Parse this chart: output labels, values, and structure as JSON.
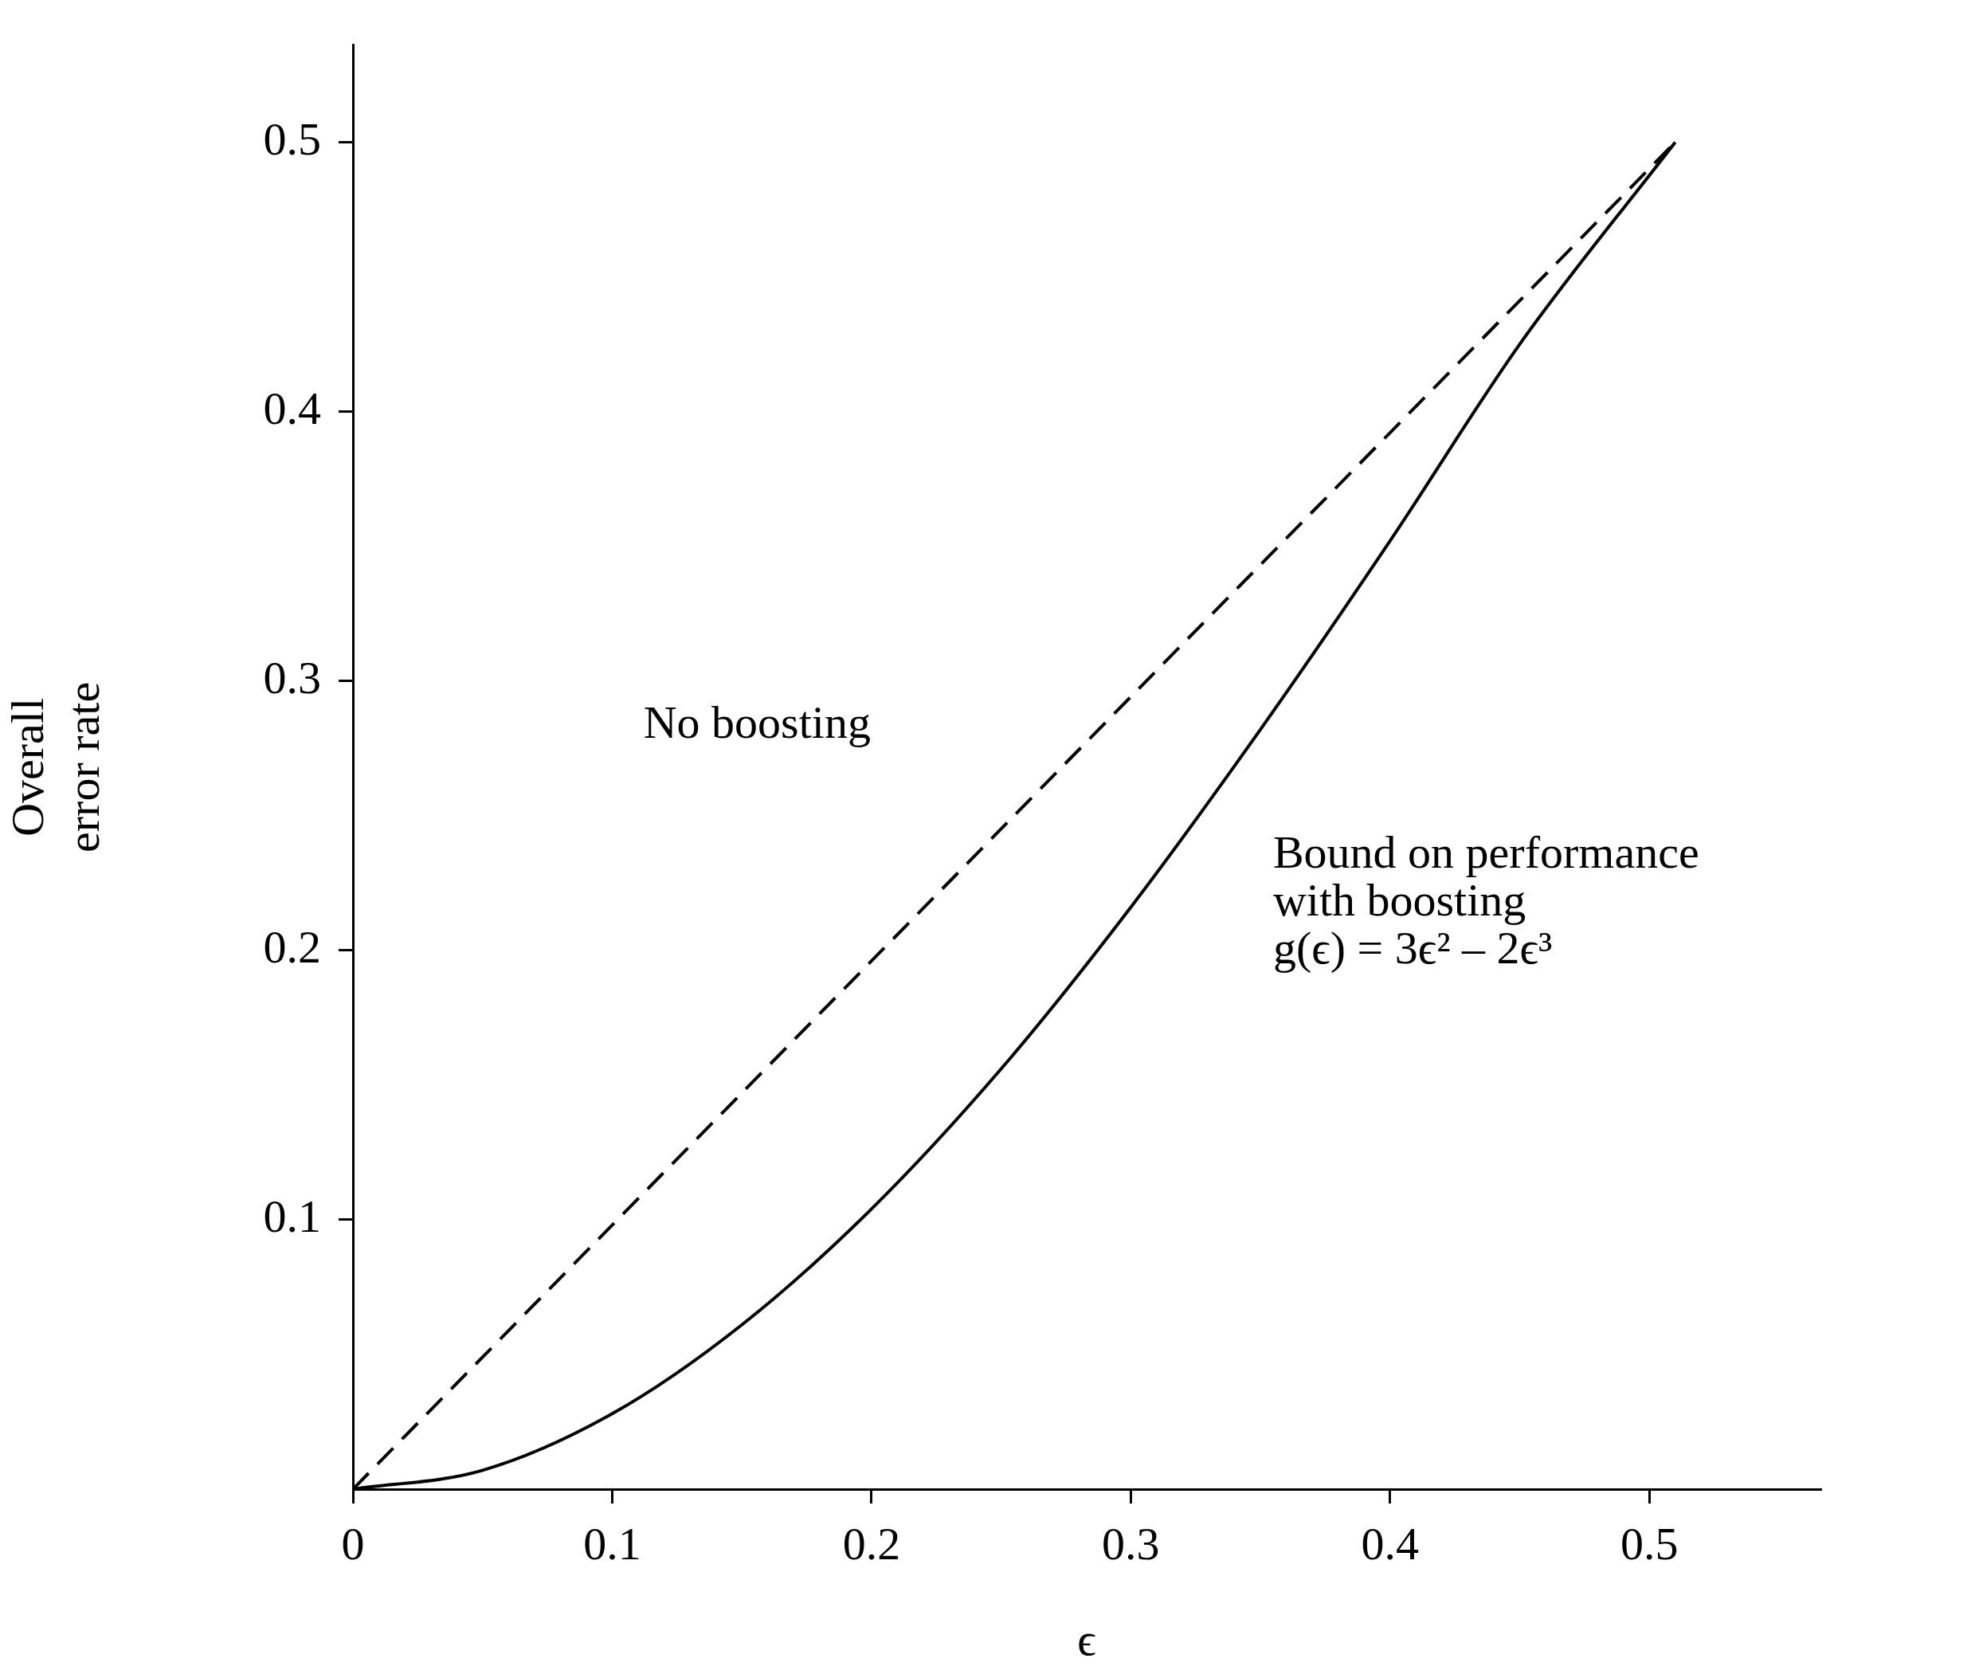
{
  "chart_data": {
    "type": "line",
    "xlabel": "ϵ",
    "ylabel": "Overall\nerror rate",
    "xlim": [
      0,
      0.566
    ],
    "ylim": [
      0,
      0.536
    ],
    "xticks": [
      0,
      0.1,
      0.2,
      0.3,
      0.4,
      0.5
    ],
    "yticks": [
      0.1,
      0.2,
      0.3,
      0.4,
      0.5
    ],
    "grid": false,
    "legend": false,
    "marker": "none",
    "series": [
      {
        "color": "#000000",
        "line_style": "dashed",
        "x": [
          0,
          0.51
        ],
        "values": [
          0,
          0.5
        ]
      },
      {
        "color": "#000000",
        "line_style": "solid",
        "x": [
          0,
          0.05,
          0.1,
          0.15,
          0.2,
          0.25,
          0.3,
          0.35,
          0.4,
          0.45,
          0.51
        ],
        "values": [
          0,
          0.007,
          0.028,
          0.061,
          0.104,
          0.156,
          0.216,
          0.282,
          0.352,
          0.425,
          0.5
        ]
      }
    ],
    "annotations": [
      "No boosting",
      "Bound on performance\nwith boosting\ng(ϵ) = 3ϵ² – 2ϵ³"
    ]
  }
}
